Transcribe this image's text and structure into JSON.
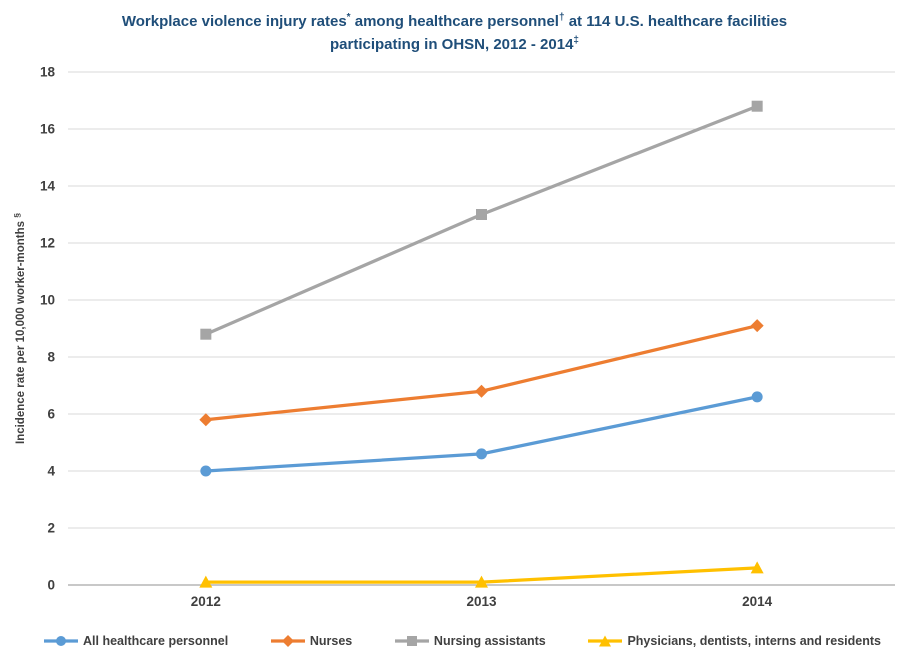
{
  "title": {
    "parts": [
      {
        "text": "Workplace violence injury rates"
      },
      {
        "text": "*",
        "sup": true
      },
      {
        "text": " among healthcare personnel"
      },
      {
        "text": "†",
        "sup": true
      },
      {
        "text": " at 114 U.S. healthcare facilities participating in OHSN, 2012 - 2014"
      },
      {
        "text": "‡",
        "sup": true
      }
    ],
    "color": "#1F4E79"
  },
  "chart_data": {
    "type": "line",
    "title": "Workplace violence injury rates among healthcare personnel at 114 U.S. healthcare facilities participating in OHSN, 2012 - 2014",
    "categories": [
      "2012",
      "2013",
      "2014"
    ],
    "series": [
      {
        "name": "All healthcare personnel",
        "values": [
          4.0,
          4.6,
          6.6
        ],
        "color": "#5B9BD5",
        "marker": "circle"
      },
      {
        "name": "Nurses",
        "values": [
          5.8,
          6.8,
          9.1
        ],
        "color": "#ED7D31",
        "marker": "diamond"
      },
      {
        "name": "Nursing assistants",
        "values": [
          8.8,
          13.0,
          16.8
        ],
        "color": "#A5A5A5",
        "marker": "square"
      },
      {
        "name": "Physicians, dentists, interns and residents",
        "values": [
          0.1,
          0.1,
          0.6
        ],
        "color": "#FFC000",
        "marker": "triangle"
      }
    ],
    "xlabel": "",
    "ylabel": "Incidence rate per 10,000 worker-months",
    "ylabel_superscript": "§",
    "ylim": [
      0,
      18
    ],
    "ytick_step": 2,
    "grid": true,
    "legend_position": "bottom",
    "styles": {
      "gridline_color": "#D9D9D9",
      "axis_line_color": "#A6A6A6",
      "tick_label_color": "#404040",
      "legend_text_color": "#404040",
      "line_width": 3.25
    }
  }
}
